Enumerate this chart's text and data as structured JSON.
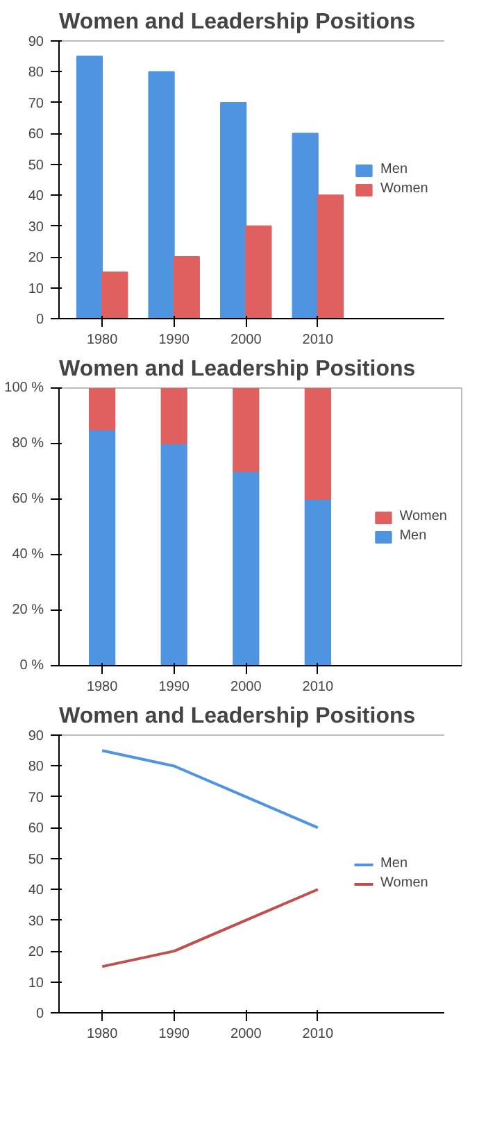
{
  "chart_data": [
    {
      "type": "bar",
      "title": "Women and Leadership Positions",
      "categories": [
        "1980",
        "1990",
        "2000",
        "2010"
      ],
      "series": [
        {
          "name": "Men",
          "color": "#4f94e0",
          "values": [
            85,
            80,
            70,
            60
          ]
        },
        {
          "name": "Women",
          "color": "#e0605f",
          "values": [
            15,
            20,
            30,
            40
          ]
        }
      ],
      "ylim": [
        0,
        90
      ],
      "yticks": [
        0,
        10,
        20,
        30,
        40,
        50,
        60,
        70,
        80,
        90
      ],
      "legend": "right"
    },
    {
      "type": "bar",
      "stacked": true,
      "title": "Women and Leadership Positions",
      "categories": [
        "1980",
        "1990",
        "2000",
        "2010"
      ],
      "series": [
        {
          "name": "Men",
          "color": "#4f94e0",
          "values": [
            85,
            80,
            70,
            60
          ]
        },
        {
          "name": "Women",
          "color": "#e0605f",
          "values": [
            15,
            20,
            30,
            40
          ]
        }
      ],
      "ylim": [
        0,
        100
      ],
      "yticks": [
        {
          "value": 0,
          "label": "0 %"
        },
        {
          "value": 20,
          "label": "20 %"
        },
        {
          "value": 40,
          "label": "40 %"
        },
        {
          "value": 60,
          "label": "60 %"
        },
        {
          "value": 80,
          "label": "80 %"
        },
        {
          "value": 100,
          "label": "100 %"
        }
      ],
      "legend": "right"
    },
    {
      "type": "line",
      "title": "Women and Leadership Positions",
      "categories": [
        "1980",
        "1990",
        "2000",
        "2010"
      ],
      "series": [
        {
          "name": "Men",
          "color": "#4f94e0",
          "values": [
            85,
            80,
            70,
            60
          ]
        },
        {
          "name": "Women",
          "color": "#c0504d",
          "values": [
            15,
            20,
            30,
            40
          ]
        }
      ],
      "ylim": [
        0,
        90
      ],
      "yticks": [
        0,
        10,
        20,
        30,
        40,
        50,
        60,
        70,
        80,
        90
      ],
      "legend": "right"
    }
  ]
}
